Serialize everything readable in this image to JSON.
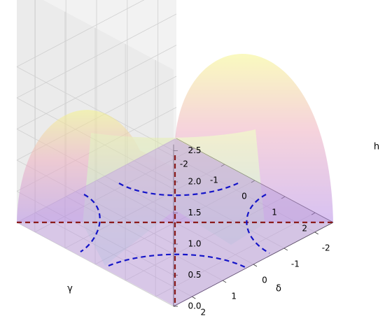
{
  "chart_data": {
    "type": "surface3d",
    "xlabel": "γ",
    "ylabel": "δ",
    "zlabel": "h",
    "xlim": [
      -2.6,
      2.6
    ],
    "ylim": [
      -2.6,
      2.6
    ],
    "zlim": [
      0,
      2.6
    ],
    "xticks": [
      -2,
      -1,
      0,
      1,
      2
    ],
    "yticks": [
      -2,
      -1,
      0,
      1,
      2
    ],
    "zticks": [
      {
        "value": 0,
        "label": "0.0"
      },
      {
        "value": 0.5,
        "label": "0.5"
      },
      {
        "value": 1,
        "label": "1.0"
      },
      {
        "value": 1.5,
        "label": "1.5"
      },
      {
        "value": 2,
        "label": "2.0"
      },
      {
        "value": 2.5,
        "label": "2.5"
      }
    ],
    "grid": true
  }
}
